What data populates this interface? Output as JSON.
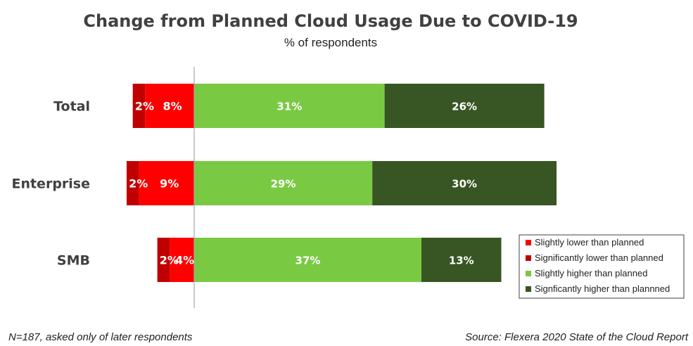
{
  "chart_data": {
    "type": "bar",
    "orientation": "horizontal",
    "stacked": "diverging",
    "title": "Change from Planned Cloud Usage Due to COVID-19",
    "subtitle": "% of respondents",
    "categories": [
      "Total",
      "Enterprise",
      "SMB"
    ],
    "series": [
      {
        "name": "Slightly lower than planned",
        "values": [
          8,
          9,
          4
        ],
        "labels": [
          "8%",
          "9%",
          "4%"
        ],
        "direction": "negative",
        "color": "#ff0000"
      },
      {
        "name": "Significantly lower than planned",
        "values": [
          2,
          2,
          2
        ],
        "labels": [
          "2%",
          "2%",
          "2%"
        ],
        "direction": "negative",
        "color": "#c00000"
      },
      {
        "name": "Slightly higher than planned",
        "values": [
          31,
          29,
          37
        ],
        "labels": [
          "31%",
          "29%",
          "37%"
        ],
        "direction": "positive",
        "color": "#7ac943"
      },
      {
        "name": "Signficantly higher than plannned",
        "values": [
          26,
          30,
          13
        ],
        "labels": [
          "26%",
          "30%",
          "13%"
        ],
        "direction": "positive",
        "color": "#375623"
      }
    ],
    "legend": "bottom-right",
    "grid": false,
    "footnote": "N=187, asked only of later respondents",
    "source": "Source: Flexera 2020 State of the Cloud Report"
  }
}
